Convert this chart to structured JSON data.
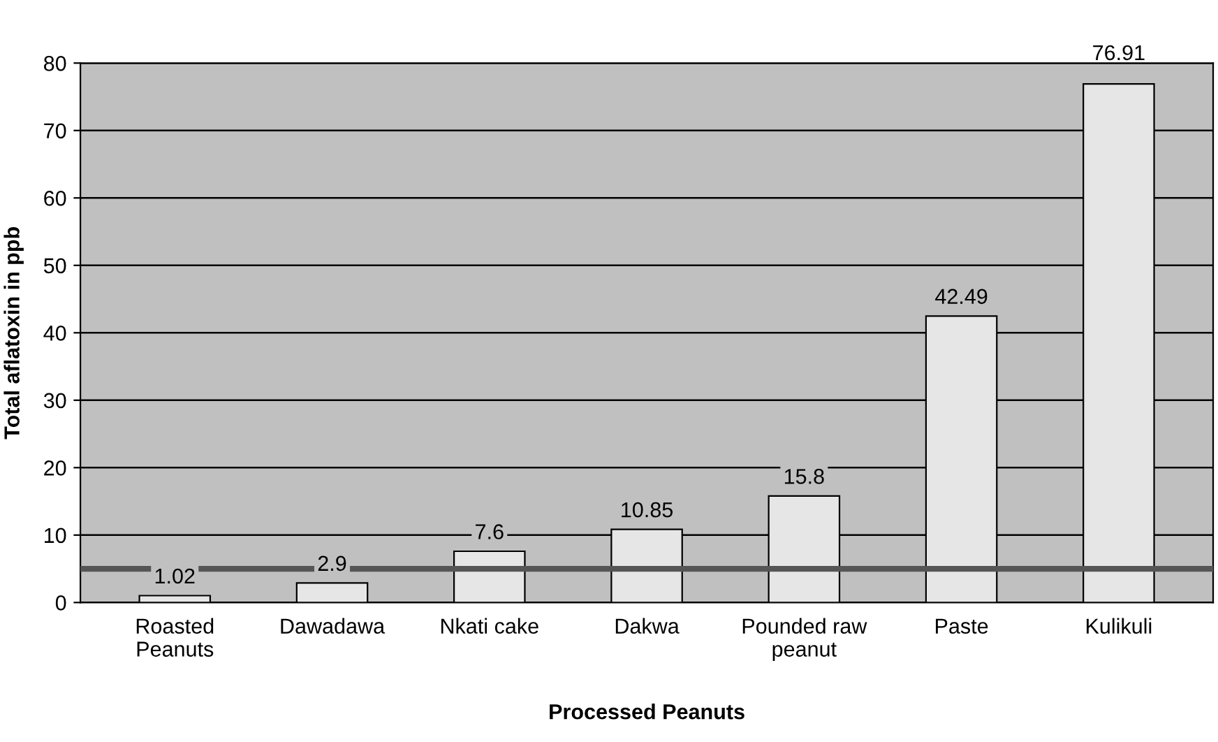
{
  "chart_data": {
    "type": "bar",
    "xlabel": "Processed Peanuts",
    "ylabel": "Total aflatoxin in ppb",
    "categories": [
      "Roasted\nPeanuts",
      "Dawadawa",
      "Nkati cake",
      "Dakwa",
      "Pounded raw\npeanut",
      "Paste",
      "Kulikuli"
    ],
    "values": [
      1.02,
      2.9,
      7.6,
      10.85,
      15.8,
      42.49,
      76.91
    ],
    "color": "#e6e6e6",
    "ylim": [
      0,
      80
    ],
    "yticks": [
      0,
      10,
      20,
      30,
      40,
      50,
      60,
      70,
      80
    ],
    "grid": "y",
    "data_labels": true,
    "ref_lines": [
      {
        "axis": "y",
        "value": 5,
        "color": "#555555"
      }
    ]
  }
}
